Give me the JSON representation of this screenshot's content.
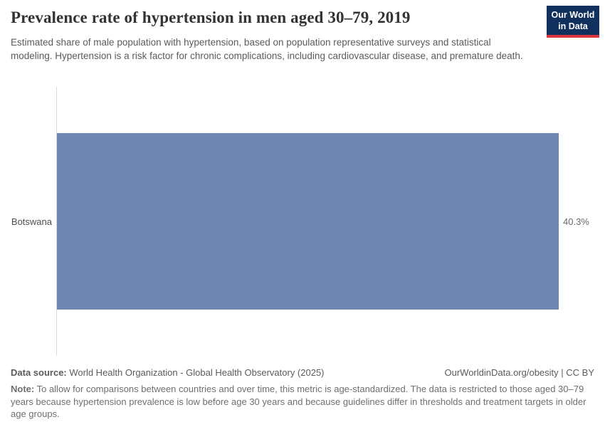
{
  "header": {
    "title": "Prevalence rate of hypertension in men aged 30–79, 2019",
    "subtitle": "Estimated share of male population with hypertension, based on population representative surveys and statistical modeling. Hypertension is a risk factor for chronic complications, including cardiovascular disease, and premature death.",
    "logo": {
      "line1": "Our World",
      "line2": "in Data"
    }
  },
  "chart_data": {
    "type": "bar",
    "orientation": "horizontal",
    "categories": [
      "Botswana"
    ],
    "values": [
      40.3
    ],
    "value_labels": [
      "40.3%"
    ],
    "unit": "%",
    "title": "Prevalence rate of hypertension in men aged 30–79, 2019",
    "xlabel": "",
    "ylabel": "",
    "xlim": [
      0,
      40.3
    ],
    "grid": false,
    "legend": false
  },
  "footer": {
    "data_source_label": "Data source:",
    "data_source_text": " World Health Organization - Global Health Observatory (2025)",
    "attribution": "OurWorldinData.org/obesity | CC BY",
    "note_label": "Note:",
    "note_text": " To allow for comparisons between countries and over time, this metric is age-standardized. The data is restricted to those aged 30–79 years because hypertension prevalence is low before age 30 years and because guidelines differ in thresholds and treatment targets in older age groups."
  },
  "colors": {
    "bar": "#6e87b2",
    "logo_bg": "#12305d",
    "logo_stripe": "#d8353f",
    "title_text": "#333333",
    "subtitle_text": "#5b5b5b",
    "footer_text": "#5b5b5b",
    "axis_line": "#dcdcdc"
  }
}
